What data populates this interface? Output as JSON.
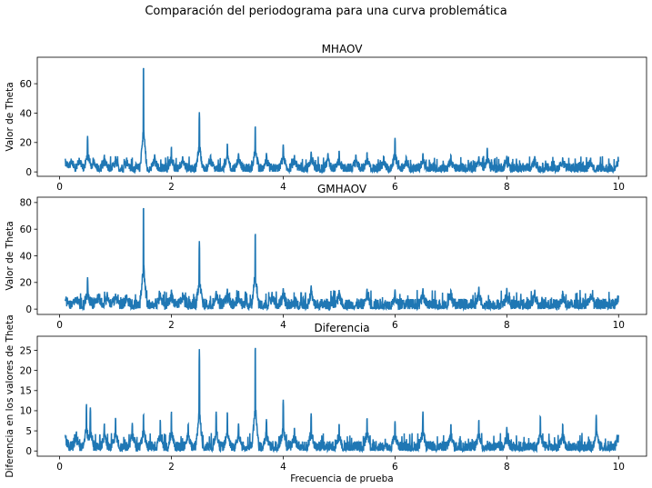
{
  "figure": {
    "suptitle": "Comparación del periodograma para una curva problemática"
  },
  "colors": {
    "line": "#1f77b4",
    "axis": "#000000"
  },
  "chart_data": [
    {
      "type": "line",
      "title": "MHAOV",
      "xlabel": "",
      "ylabel": "Valor de Theta",
      "xlim": [
        -0.4,
        10.5
      ],
      "ylim": [
        -3,
        78
      ],
      "xticks": [
        0,
        2,
        4,
        6,
        8,
        10
      ],
      "yticks": [
        0,
        20,
        40,
        60
      ],
      "grid": false,
      "x_range": [
        0.1,
        10.0
      ],
      "baseline": [
        0,
        6
      ],
      "peaks": [
        [
          0.1,
          9
        ],
        [
          0.2,
          8
        ],
        [
          0.35,
          10
        ],
        [
          0.5,
          24.5
        ],
        [
          0.6,
          10
        ],
        [
          0.8,
          12
        ],
        [
          1.0,
          11
        ],
        [
          1.2,
          10
        ],
        [
          1.5,
          75
        ],
        [
          1.7,
          12
        ],
        [
          2.0,
          17.5
        ],
        [
          2.2,
          11
        ],
        [
          2.5,
          41
        ],
        [
          2.7,
          12
        ],
        [
          3.0,
          20
        ],
        [
          3.2,
          13
        ],
        [
          3.5,
          32.5
        ],
        [
          3.7,
          13
        ],
        [
          4.0,
          19
        ],
        [
          4.2,
          12
        ],
        [
          4.5,
          14
        ],
        [
          4.8,
          13
        ],
        [
          5.0,
          15
        ],
        [
          5.3,
          12
        ],
        [
          5.5,
          14
        ],
        [
          5.8,
          11
        ],
        [
          6.0,
          23.5
        ],
        [
          6.2,
          11
        ],
        [
          6.5,
          13
        ],
        [
          7.0,
          12
        ],
        [
          7.5,
          11
        ],
        [
          7.65,
          16.5
        ],
        [
          8.0,
          11
        ],
        [
          8.5,
          11
        ],
        [
          9.0,
          10
        ],
        [
          9.5,
          10
        ],
        [
          10.0,
          8
        ]
      ]
    },
    {
      "type": "line",
      "title": "GMHAOV",
      "xlabel": "",
      "ylabel": "Valor de Theta",
      "xlim": [
        -0.4,
        10.5
      ],
      "ylim": [
        -4,
        84
      ],
      "xticks": [
        0,
        2,
        4,
        6,
        8,
        10
      ],
      "yticks": [
        0,
        20,
        40,
        60,
        80
      ],
      "grid": false,
      "x_range": [
        0.1,
        10.0
      ],
      "baseline": [
        0,
        8
      ],
      "peaks": [
        [
          0.1,
          7
        ],
        [
          0.3,
          9
        ],
        [
          0.5,
          24
        ],
        [
          0.7,
          12
        ],
        [
          0.85,
          13
        ],
        [
          1.0,
          12
        ],
        [
          1.2,
          11
        ],
        [
          1.5,
          80.5
        ],
        [
          1.8,
          13
        ],
        [
          2.0,
          15
        ],
        [
          2.2,
          13
        ],
        [
          2.5,
          51.5
        ],
        [
          2.8,
          14
        ],
        [
          3.0,
          16
        ],
        [
          3.2,
          14
        ],
        [
          3.5,
          59.5
        ],
        [
          3.8,
          13
        ],
        [
          4.0,
          16
        ],
        [
          4.5,
          18
        ],
        [
          5.0,
          15
        ],
        [
          5.5,
          16
        ],
        [
          6.0,
          15
        ],
        [
          6.5,
          16
        ],
        [
          7.0,
          15
        ],
        [
          7.5,
          17.5
        ],
        [
          8.0,
          16
        ],
        [
          8.5,
          15
        ],
        [
          9.0,
          14
        ],
        [
          9.5,
          12
        ],
        [
          10.0,
          10
        ]
      ]
    },
    {
      "type": "line",
      "title": "Diferencia",
      "xlabel": "Frecuencia de prueba",
      "ylabel": "Diferencia en los valores de Theta",
      "xlim": [
        -0.4,
        10.5
      ],
      "ylim": [
        -1.3,
        28.5
      ],
      "xticks": [
        0,
        2,
        4,
        6,
        8,
        10
      ],
      "yticks": [
        0,
        5,
        10,
        15,
        20,
        25
      ],
      "grid": false,
      "x_range": [
        0.1,
        10.0
      ],
      "baseline": [
        0,
        2.5
      ],
      "peaks": [
        [
          0.1,
          4
        ],
        [
          0.3,
          5
        ],
        [
          0.48,
          12
        ],
        [
          0.55,
          11
        ],
        [
          0.8,
          7
        ],
        [
          1.0,
          8.5
        ],
        [
          1.3,
          7
        ],
        [
          1.5,
          9.5
        ],
        [
          1.8,
          8
        ],
        [
          2.0,
          10
        ],
        [
          2.3,
          7
        ],
        [
          2.5,
          25.5
        ],
        [
          2.8,
          10
        ],
        [
          3.0,
          10
        ],
        [
          3.2,
          7
        ],
        [
          3.5,
          27
        ],
        [
          3.7,
          8
        ],
        [
          4.0,
          13
        ],
        [
          4.2,
          6
        ],
        [
          4.5,
          9.5
        ],
        [
          5.0,
          7
        ],
        [
          5.5,
          8.5
        ],
        [
          6.0,
          7.5
        ],
        [
          6.5,
          10
        ],
        [
          7.0,
          7
        ],
        [
          7.5,
          8
        ],
        [
          8.0,
          6
        ],
        [
          8.6,
          9
        ],
        [
          9.0,
          7
        ],
        [
          9.6,
          9
        ],
        [
          10.0,
          4
        ]
      ]
    }
  ]
}
